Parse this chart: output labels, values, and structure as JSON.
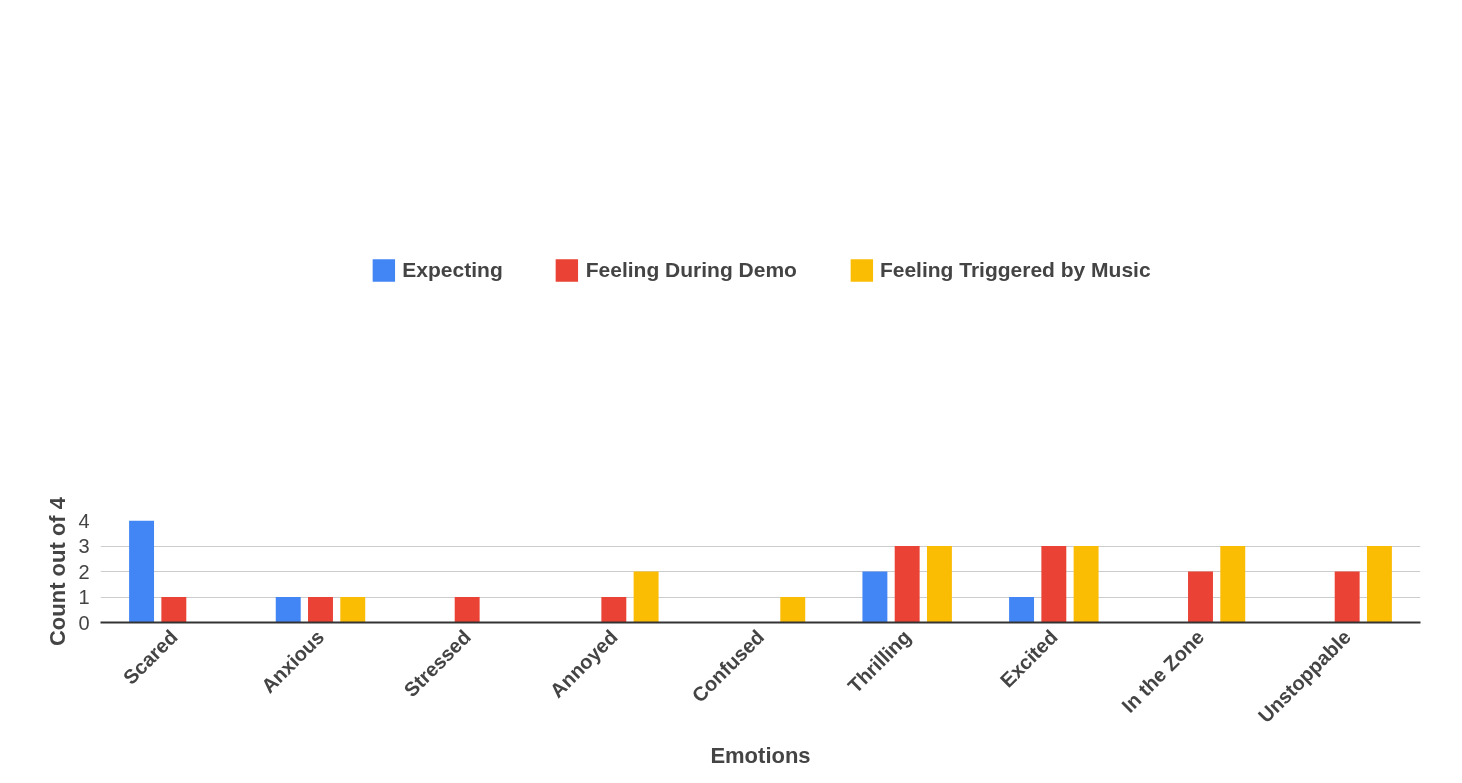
{
  "chart_data": {
    "type": "bar",
    "xlabel": "Emotions",
    "ylabel": "Count out of 4",
    "categories": [
      "Scared",
      "Anxious",
      "Stressed",
      "Annoyed",
      "Confused",
      "Thrilling",
      "Excited",
      "In the Zone",
      "Unstoppable"
    ],
    "series": [
      {
        "name": "Expecting",
        "color": "#4285f4",
        "values": [
          4,
          1,
          0,
          0,
          0,
          2,
          1,
          0,
          0
        ]
      },
      {
        "name": "Feeling During Demo",
        "color": "#ea4335",
        "values": [
          1,
          1,
          1,
          1,
          0,
          3,
          3,
          2,
          2
        ]
      },
      {
        "name": "Feeling Triggered by Music",
        "color": "#fbbc04",
        "values": [
          0,
          1,
          0,
          2,
          1,
          3,
          3,
          3,
          3
        ]
      }
    ],
    "ylim": [
      0,
      4
    ],
    "yticks": [
      0,
      1,
      2,
      3,
      4
    ],
    "grid": "y",
    "legend": "top"
  }
}
